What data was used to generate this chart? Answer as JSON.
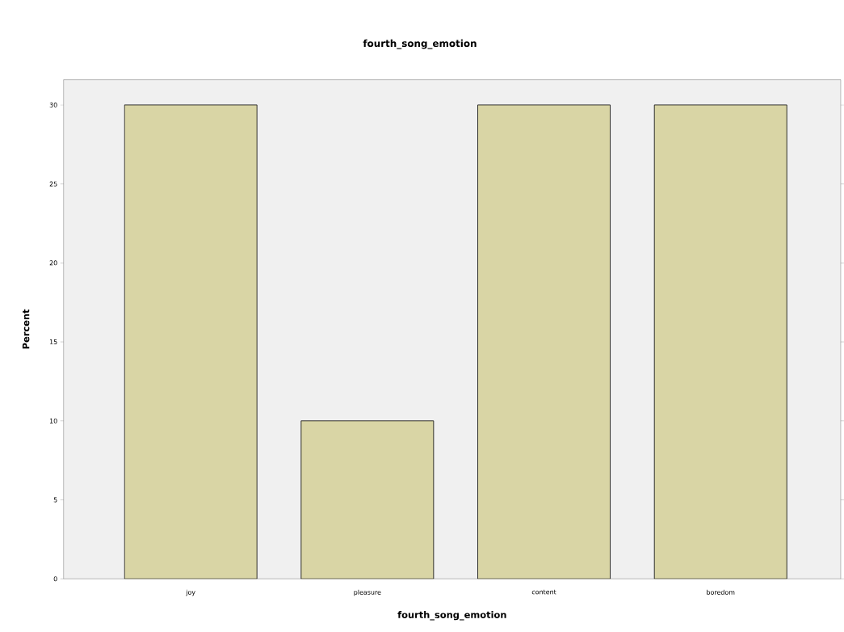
{
  "chart_data": {
    "type": "bar",
    "title": "fourth_song_emotion",
    "xlabel": "fourth_song_emotion",
    "ylabel": "Percent",
    "categories": [
      "joy",
      "pleasure",
      "content",
      "boredom"
    ],
    "values": [
      30,
      10,
      30,
      30
    ],
    "color": "#d9d5a5",
    "ylim": [
      0,
      31.6
    ],
    "yticks": [
      0,
      5,
      10,
      15,
      20,
      25,
      30
    ],
    "grid": false
  }
}
